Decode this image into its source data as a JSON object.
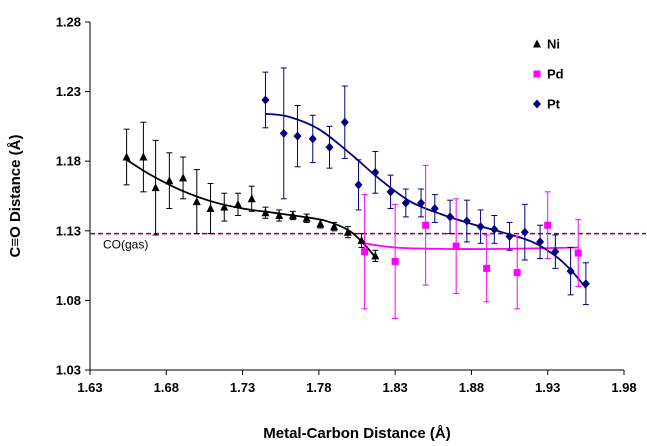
{
  "chart_data": {
    "type": "scatter",
    "xlabel": "Metal-Carbon Distance (Å)",
    "ylabel": "C≡O Distance (Å)",
    "xlim": [
      1.63,
      1.98
    ],
    "ylim": [
      1.03,
      1.28
    ],
    "x_ticks": [
      "1.63",
      "1.68",
      "1.73",
      "1.78",
      "1.83",
      "1.88",
      "1.93",
      "1.98"
    ],
    "y_ticks": [
      "1.03",
      "1.08",
      "1.13",
      "1.18",
      "1.23",
      "1.28"
    ],
    "grid": false,
    "legend_position": "top-right",
    "reference_line": {
      "label": "CO(gas)",
      "y": 1.128,
      "style": "dashed",
      "color": "#800060"
    },
    "series": [
      {
        "name": "Ni",
        "marker": "triangle",
        "color": "#000000",
        "points": [
          {
            "x": 1.654,
            "y": 1.183,
            "err": 0.02
          },
          {
            "x": 1.665,
            "y": 1.183,
            "err": 0.025
          },
          {
            "x": 1.673,
            "y": 1.161,
            "err": 0.034
          },
          {
            "x": 1.682,
            "y": 1.166,
            "err": 0.02
          },
          {
            "x": 1.691,
            "y": 1.168,
            "err": 0.015
          },
          {
            "x": 1.7,
            "y": 1.151,
            "err": 0.023
          },
          {
            "x": 1.709,
            "y": 1.146,
            "err": 0.018
          },
          {
            "x": 1.718,
            "y": 1.147,
            "err": 0.01
          },
          {
            "x": 1.727,
            "y": 1.149,
            "err": 0.008
          },
          {
            "x": 1.736,
            "y": 1.153,
            "err": 0.009
          },
          {
            "x": 1.745,
            "y": 1.143,
            "err": 0.004
          },
          {
            "x": 1.754,
            "y": 1.141,
            "err": 0.004
          },
          {
            "x": 1.763,
            "y": 1.141,
            "err": 0.003
          },
          {
            "x": 1.772,
            "y": 1.139,
            "err": 0.003
          },
          {
            "x": 1.781,
            "y": 1.135,
            "err": 0.003
          },
          {
            "x": 1.79,
            "y": 1.133,
            "err": 0.003
          },
          {
            "x": 1.799,
            "y": 1.129,
            "err": 0.004
          },
          {
            "x": 1.808,
            "y": 1.123,
            "err": 0.005
          },
          {
            "x": 1.817,
            "y": 1.112,
            "err": 0.004
          }
        ],
        "trendline": [
          [
            1.654,
            1.181
          ],
          [
            1.67,
            1.17
          ],
          [
            1.69,
            1.159
          ],
          [
            1.71,
            1.151
          ],
          [
            1.73,
            1.146
          ],
          [
            1.75,
            1.143
          ],
          [
            1.77,
            1.14
          ],
          [
            1.785,
            1.137
          ],
          [
            1.8,
            1.13
          ],
          [
            1.81,
            1.12
          ],
          [
            1.817,
            1.111
          ]
        ]
      },
      {
        "name": "Pd",
        "marker": "square",
        "color": "#ff00ff",
        "points": [
          {
            "x": 1.81,
            "y": 1.115,
            "err": 0.041
          },
          {
            "x": 1.83,
            "y": 1.108,
            "err": 0.041
          },
          {
            "x": 1.85,
            "y": 1.134,
            "err": 0.043
          },
          {
            "x": 1.87,
            "y": 1.119,
            "err": 0.034
          },
          {
            "x": 1.89,
            "y": 1.103,
            "err": 0.024
          },
          {
            "x": 1.91,
            "y": 1.1,
            "err": 0.026
          },
          {
            "x": 1.93,
            "y": 1.134,
            "err": 0.024
          },
          {
            "x": 1.95,
            "y": 1.114,
            "err": 0.024
          }
        ],
        "trendline": [
          [
            1.81,
            1.121
          ],
          [
            1.83,
            1.118
          ],
          [
            1.86,
            1.117
          ],
          [
            1.9,
            1.117
          ],
          [
            1.95,
            1.118
          ]
        ]
      },
      {
        "name": "Pt",
        "marker": "diamond",
        "color": "#000080",
        "points": [
          {
            "x": 1.745,
            "y": 1.224,
            "err": 0.02
          },
          {
            "x": 1.757,
            "y": 1.2,
            "err": 0.047
          },
          {
            "x": 1.766,
            "y": 1.198,
            "err": 0.022
          },
          {
            "x": 1.776,
            "y": 1.196,
            "err": 0.017
          },
          {
            "x": 1.787,
            "y": 1.19,
            "err": 0.015
          },
          {
            "x": 1.797,
            "y": 1.208,
            "err": 0.026
          },
          {
            "x": 1.806,
            "y": 1.163,
            "err": 0.018
          },
          {
            "x": 1.817,
            "y": 1.172,
            "err": 0.015
          },
          {
            "x": 1.827,
            "y": 1.158,
            "err": 0.012
          },
          {
            "x": 1.837,
            "y": 1.15,
            "err": 0.01
          },
          {
            "x": 1.847,
            "y": 1.15,
            "err": 0.01
          },
          {
            "x": 1.856,
            "y": 1.146,
            "err": 0.01
          },
          {
            "x": 1.866,
            "y": 1.14,
            "err": 0.012
          },
          {
            "x": 1.877,
            "y": 1.137,
            "err": 0.015
          },
          {
            "x": 1.886,
            "y": 1.133,
            "err": 0.012
          },
          {
            "x": 1.895,
            "y": 1.131,
            "err": 0.01
          },
          {
            "x": 1.905,
            "y": 1.126,
            "err": 0.01
          },
          {
            "x": 1.915,
            "y": 1.129,
            "err": 0.02
          },
          {
            "x": 1.925,
            "y": 1.122,
            "err": 0.012
          },
          {
            "x": 1.935,
            "y": 1.115,
            "err": 0.012
          },
          {
            "x": 1.945,
            "y": 1.101,
            "err": 0.017
          },
          {
            "x": 1.955,
            "y": 1.092,
            "err": 0.015
          }
        ],
        "trendline": [
          [
            1.745,
            1.214
          ],
          [
            1.76,
            1.212
          ],
          [
            1.78,
            1.203
          ],
          [
            1.8,
            1.186
          ],
          [
            1.82,
            1.167
          ],
          [
            1.84,
            1.151
          ],
          [
            1.86,
            1.142
          ],
          [
            1.88,
            1.135
          ],
          [
            1.9,
            1.129
          ],
          [
            1.92,
            1.122
          ],
          [
            1.935,
            1.112
          ],
          [
            1.945,
            1.102
          ],
          [
            1.955,
            1.089
          ]
        ]
      }
    ]
  }
}
